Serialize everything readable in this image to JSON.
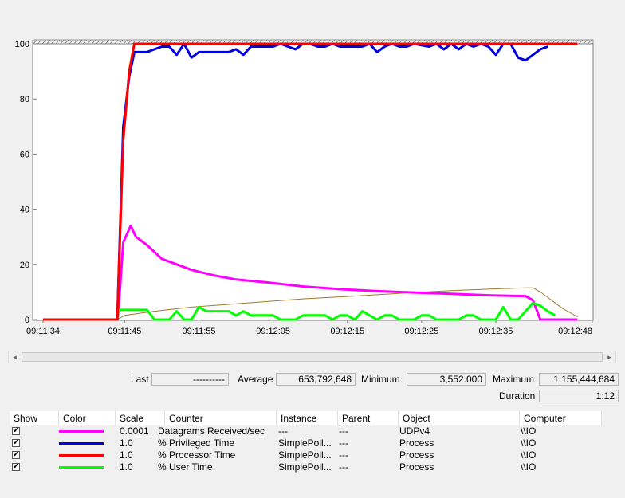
{
  "chart_data": {
    "type": "line",
    "ylim": [
      0,
      100
    ],
    "y_ticks": [
      "100",
      "80",
      "60",
      "40",
      "20",
      "0"
    ],
    "x_ticks": [
      "09:11:34",
      "09:11:45",
      "09:11:55",
      "09:12:05",
      "09:12:15",
      "09:12:25",
      "09:12:35",
      "09:12:48"
    ],
    "grid": false,
    "series": [
      {
        "name": "Datagrams Received/sec",
        "color": "#ff00ff",
        "points": [
          [
            0,
            0
          ],
          [
            10,
            0
          ],
          [
            10.2,
            5
          ],
          [
            10.8,
            28
          ],
          [
            11.8,
            34
          ],
          [
            12.5,
            30
          ],
          [
            14,
            27
          ],
          [
            16,
            22
          ],
          [
            18,
            20
          ],
          [
            20,
            18
          ],
          [
            23,
            16
          ],
          [
            26,
            14.5
          ],
          [
            30,
            13.5
          ],
          [
            35,
            12
          ],
          [
            40,
            11
          ],
          [
            45,
            10.3
          ],
          [
            50,
            9.8
          ],
          [
            55,
            9.3
          ],
          [
            60,
            8.8
          ],
          [
            65,
            8.5
          ],
          [
            66,
            7
          ],
          [
            67,
            0
          ],
          [
            72,
            0
          ]
        ]
      },
      {
        "name": "% Privileged Time",
        "color": "#0000e0",
        "points": [
          [
            0,
            0
          ],
          [
            10,
            0
          ],
          [
            10.8,
            70
          ],
          [
            11.6,
            88
          ],
          [
            12.3,
            97
          ],
          [
            14,
            97
          ],
          [
            15,
            98
          ],
          [
            16,
            99
          ],
          [
            17,
            99
          ],
          [
            18,
            96
          ],
          [
            19,
            100
          ],
          [
            20,
            95
          ],
          [
            21,
            97
          ],
          [
            22,
            97
          ],
          [
            24,
            97
          ],
          [
            25,
            97
          ],
          [
            26,
            98
          ],
          [
            27,
            96
          ],
          [
            28,
            99
          ],
          [
            30,
            99
          ],
          [
            31,
            99
          ],
          [
            32,
            100
          ],
          [
            33,
            99
          ],
          [
            34,
            98
          ],
          [
            35,
            100
          ],
          [
            36,
            100
          ],
          [
            37,
            99
          ],
          [
            38,
            99
          ],
          [
            39,
            100
          ],
          [
            40,
            99
          ],
          [
            42,
            99
          ],
          [
            43,
            99
          ],
          [
            44,
            100
          ],
          [
            45,
            97
          ],
          [
            46,
            99
          ],
          [
            47,
            100
          ],
          [
            48,
            99
          ],
          [
            49,
            99
          ],
          [
            50,
            100
          ],
          [
            52,
            99
          ],
          [
            53,
            100
          ],
          [
            54,
            98
          ],
          [
            55,
            100
          ],
          [
            56,
            98
          ],
          [
            57,
            100
          ],
          [
            58,
            99
          ],
          [
            59,
            100
          ],
          [
            60,
            99
          ],
          [
            61,
            96
          ],
          [
            62,
            100
          ],
          [
            63,
            100
          ],
          [
            64,
            95
          ],
          [
            65,
            94
          ],
          [
            66,
            96
          ],
          [
            67,
            98
          ],
          [
            68,
            99
          ]
        ]
      },
      {
        "name": "% Processor Time",
        "color": "#ff0000",
        "points": [
          [
            0,
            0
          ],
          [
            10,
            0
          ],
          [
            10.8,
            65
          ],
          [
            11.6,
            90
          ],
          [
            12.3,
            100
          ],
          [
            72,
            100
          ]
        ]
      },
      {
        "name": "% User Time",
        "color": "#00ff00",
        "points": [
          [
            0,
            0
          ],
          [
            10,
            0
          ],
          [
            10.2,
            3.5
          ],
          [
            12,
            3.5
          ],
          [
            13,
            3.5
          ],
          [
            14,
            3.5
          ],
          [
            15,
            0
          ],
          [
            16,
            0
          ],
          [
            17,
            0
          ],
          [
            18,
            3
          ],
          [
            19,
            0
          ],
          [
            20,
            0
          ],
          [
            21,
            4.5
          ],
          [
            22,
            3
          ],
          [
            23,
            3
          ],
          [
            25,
            3
          ],
          [
            26,
            1.5
          ],
          [
            27,
            3
          ],
          [
            28,
            1.5
          ],
          [
            29,
            1.5
          ],
          [
            30,
            1.5
          ],
          [
            31,
            1.5
          ],
          [
            32,
            0
          ],
          [
            34,
            0
          ],
          [
            35,
            1.5
          ],
          [
            36,
            1.5
          ],
          [
            38,
            1.5
          ],
          [
            39,
            0
          ],
          [
            40,
            1.5
          ],
          [
            41,
            1.5
          ],
          [
            42,
            0
          ],
          [
            43,
            3
          ],
          [
            44,
            1.5
          ],
          [
            45,
            0
          ],
          [
            46,
            1.5
          ],
          [
            47,
            1.5
          ],
          [
            48,
            0
          ],
          [
            50,
            0
          ],
          [
            51,
            1.5
          ],
          [
            52,
            1.5
          ],
          [
            53,
            0
          ],
          [
            56,
            0
          ],
          [
            57,
            1.5
          ],
          [
            58,
            1.5
          ],
          [
            59,
            0
          ],
          [
            61,
            0
          ],
          [
            62,
            4.5
          ],
          [
            63,
            0
          ],
          [
            64,
            0
          ],
          [
            65,
            3
          ],
          [
            66,
            6
          ],
          [
            67,
            5
          ],
          [
            68,
            3
          ],
          [
            69,
            1.5
          ]
        ]
      },
      {
        "name": "",
        "color": "#a07a2a",
        "thin": true,
        "points": [
          [
            0,
            0
          ],
          [
            10,
            0
          ],
          [
            11,
            1.5
          ],
          [
            15,
            3
          ],
          [
            20,
            4.5
          ],
          [
            25,
            5.5
          ],
          [
            30,
            6.5
          ],
          [
            35,
            7.5
          ],
          [
            40,
            8.2
          ],
          [
            45,
            9
          ],
          [
            50,
            9.8
          ],
          [
            55,
            10.5
          ],
          [
            60,
            11
          ],
          [
            65,
            11.5
          ],
          [
            66,
            11.5
          ],
          [
            67,
            10
          ],
          [
            70,
            4
          ],
          [
            72,
            1
          ]
        ]
      }
    ]
  },
  "scrollbar": {
    "left_arrow": "◂",
    "right_arrow": "▸"
  },
  "stats": {
    "last_label": "Last",
    "last_value": "----------",
    "average_label": "Average",
    "average_value": "653,792,648",
    "minimum_label": "Minimum",
    "minimum_value": "3,552.000",
    "maximum_label": "Maximum",
    "maximum_value": "1,155,444,684",
    "duration_label": "Duration",
    "duration_value": "1:12"
  },
  "table": {
    "headers": {
      "show": "Show",
      "color": "Color",
      "scale": "Scale",
      "counter": "Counter",
      "instance": "Instance",
      "parent": "Parent",
      "object": "Object",
      "computer": "Computer"
    },
    "rows": [
      {
        "check": "✔",
        "color": "#ff00ff",
        "scale": "0.0001",
        "counter": "Datagrams Received/sec",
        "instance": "---",
        "parent": "---",
        "object": "UDPv4",
        "computer": "\\\\IO"
      },
      {
        "check": "✔",
        "color": "#0000e0",
        "scale": "1.0",
        "counter": "% Privileged Time",
        "instance": "SimplePoll...",
        "parent": "---",
        "object": "Process",
        "computer": "\\\\IO"
      },
      {
        "check": "✔",
        "color": "#ff0000",
        "scale": "1.0",
        "counter": "% Processor Time",
        "instance": "SimplePoll...",
        "parent": "---",
        "object": "Process",
        "computer": "\\\\IO"
      },
      {
        "check": "✔",
        "color": "#00ff00",
        "scale": "1.0",
        "counter": "% User Time",
        "instance": "SimplePoll...",
        "parent": "---",
        "object": "Process",
        "computer": "\\\\IO"
      }
    ]
  }
}
